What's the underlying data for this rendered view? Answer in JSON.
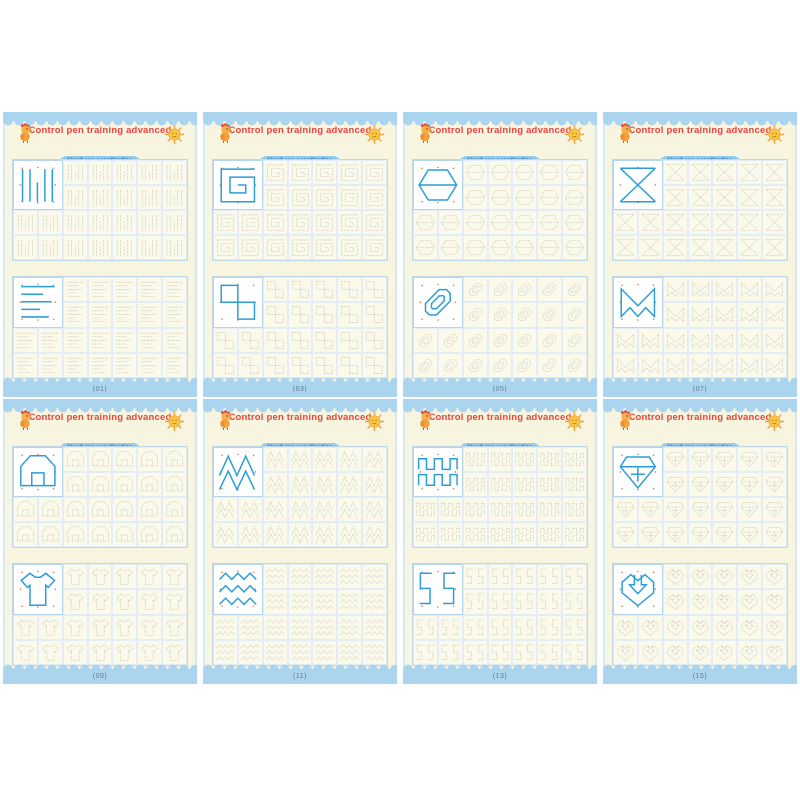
{
  "header": {
    "title": "Control pen training advanced",
    "banner_line1": "Hand-eye coordination",
    "banner_line2": "Improve concentration"
  },
  "mascots": {
    "left": "chick-mascot",
    "right": "sun-mascot"
  },
  "colors": {
    "page_background": "#f7f4df",
    "border_blue": "#abd4ee",
    "title_red": "#e8433c",
    "banner_blue": "#8fcbed",
    "banner_text": "#1c4d92",
    "example_stroke": "#2b9ed8",
    "practice_stroke": "#a6a69c",
    "grid_line": "#bfd8e9",
    "guide_dot": "#cf8a56",
    "page_number_text": "#5f7c99"
  },
  "pages": [
    {
      "number": "(01)",
      "top_pattern": "vertical-lines",
      "bottom_pattern": "horizontal-lines"
    },
    {
      "number": "(03)",
      "top_pattern": "square-spiral",
      "bottom_pattern": "two-squares"
    },
    {
      "number": "(05)",
      "top_pattern": "hexagon-line",
      "bottom_pattern": "double-octagon"
    },
    {
      "number": "(07)",
      "top_pattern": "x-cross",
      "bottom_pattern": "m-envelope"
    },
    {
      "number": "(09)",
      "top_pattern": "hexagon-house",
      "bottom_pattern": "t-shirt"
    },
    {
      "number": "(11)",
      "top_pattern": "mountain-zigzag",
      "bottom_pattern": "chevron-waves"
    },
    {
      "number": "(13)",
      "top_pattern": "square-wave",
      "bottom_pattern": "s-meander"
    },
    {
      "number": "(15)",
      "top_pattern": "diamond-gem",
      "bottom_pattern": "arrow-shield"
    }
  ],
  "grid": {
    "columns": 7,
    "rows": 4,
    "example_span": "2x2"
  }
}
